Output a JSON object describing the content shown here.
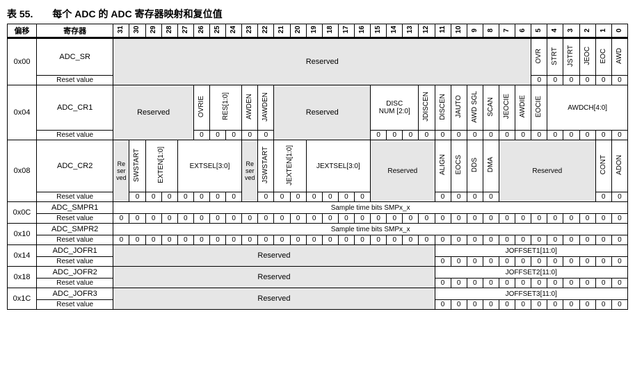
{
  "title": "表 55.　　每个 ADC 的 ADC 寄存器映射和复位值",
  "headers": {
    "offset": "偏移",
    "register": "寄存器"
  },
  "bits": [
    "31",
    "30",
    "29",
    "28",
    "27",
    "26",
    "25",
    "24",
    "23",
    "22",
    "21",
    "20",
    "19",
    "18",
    "17",
    "16",
    "15",
    "14",
    "13",
    "12",
    "11",
    "10",
    "9",
    "8",
    "7",
    "6",
    "5",
    "4",
    "3",
    "2",
    "1",
    "0"
  ],
  "reset_label": "Reset value",
  "rows": {
    "sr": {
      "offset": "0x00",
      "name": "ADC_SR",
      "reserved": "Reserved",
      "fields": [
        "OVR",
        "STRT",
        "JSTRT",
        "JEOC",
        "EOC",
        "AWD"
      ],
      "resets": [
        "0",
        "0",
        "0",
        "0",
        "0",
        "0"
      ]
    },
    "cr1": {
      "offset": "0x04",
      "name": "ADC_CR1",
      "reserved1": "Reserved",
      "f1": [
        "OVRIE",
        "RES[1:0]",
        "AWDEN",
        "JAWDEN"
      ],
      "reserved2": "Reserved",
      "discnum": "DISC\nNUM [2:0]",
      "f2": [
        "JDISCEN",
        "DISCEN",
        "JAUTO",
        "AWD SGL",
        "SCAN",
        "JEOCIE",
        "AWDIE",
        "EOCIE"
      ],
      "awdch": "AWDCH[4:0]",
      "resets": [
        "0",
        "0",
        "0",
        "0",
        "0",
        "0",
        "0",
        "0",
        "0",
        "0",
        "0",
        "0",
        "0",
        "0",
        "0",
        "0",
        "0",
        "0",
        "0",
        "0",
        "0",
        "0"
      ]
    },
    "cr2": {
      "offset": "0x08",
      "name": "ADC_CR2",
      "res1": "Re\nser\nved",
      "f1": [
        "SWSTART",
        "EXTEN[1:0]"
      ],
      "extsel": "EXTSEL[3:0]",
      "res2": "Re\nser\nved",
      "f2": [
        "JSWSTART",
        "JEXTEN[1:0]"
      ],
      "jextsel": "JEXTSEL[3:0]",
      "reserved3": "Reserved",
      "f3": [
        "ALIGN",
        "EOCS",
        "DDS",
        "DMA"
      ],
      "reserved4": "Reserved",
      "f4": [
        "CONT",
        "ADON"
      ],
      "resets": [
        "0",
        "0",
        "0",
        "0",
        "0",
        "0",
        "0",
        "0",
        "0",
        "0",
        "0",
        "0",
        "0",
        "0",
        "0",
        "0",
        "0",
        "0",
        "0",
        "0",
        "0",
        "0"
      ]
    },
    "smpr1": {
      "offset": "0x0C",
      "name": "ADC_SMPR1",
      "label": "Sample time bits SMPx_x",
      "resets": [
        "0",
        "0",
        "0",
        "0",
        "0",
        "0",
        "0",
        "0",
        "0",
        "0",
        "0",
        "0",
        "0",
        "0",
        "0",
        "0",
        "0",
        "0",
        "0",
        "0",
        "0",
        "0",
        "0",
        "0",
        "0",
        "0",
        "0",
        "0",
        "0",
        "0",
        "0",
        "0"
      ]
    },
    "smpr2": {
      "offset": "0x10",
      "name": "ADC_SMPR2",
      "label": "Sample time bits SMPx_x",
      "resets": [
        "0",
        "0",
        "0",
        "0",
        "0",
        "0",
        "0",
        "0",
        "0",
        "0",
        "0",
        "0",
        "0",
        "0",
        "0",
        "0",
        "0",
        "0",
        "0",
        "0",
        "0",
        "0",
        "0",
        "0",
        "0",
        "0",
        "0",
        "0",
        "0",
        "0",
        "0",
        "0"
      ]
    },
    "jofr1": {
      "offset": "0x14",
      "name": "ADC_JOFR1",
      "reserved": "Reserved",
      "label": "JOFFSET1[11:0]",
      "resets": [
        "0",
        "0",
        "0",
        "0",
        "0",
        "0",
        "0",
        "0",
        "0",
        "0",
        "0",
        "0"
      ]
    },
    "jofr2": {
      "offset": "0x18",
      "name": "ADC_JOFR2",
      "reserved": "Reserved",
      "label": "JOFFSET2[11:0]",
      "resets": [
        "0",
        "0",
        "0",
        "0",
        "0",
        "0",
        "0",
        "0",
        "0",
        "0",
        "0",
        "0"
      ]
    },
    "jofr3": {
      "offset": "0x1C",
      "name": "ADC_JOFR3",
      "reserved": "Reserved",
      "label": "JOFFSET3[11:0]",
      "resets": [
        "0",
        "0",
        "0",
        "0",
        "0",
        "0",
        "0",
        "0",
        "0",
        "0",
        "0",
        "0"
      ]
    }
  }
}
